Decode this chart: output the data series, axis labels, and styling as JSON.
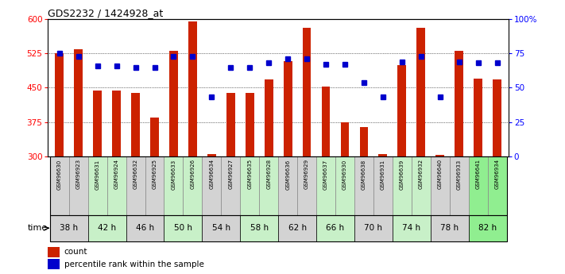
{
  "title": "GDS2232 / 1424928_at",
  "samples": [
    "GSM96630",
    "GSM96923",
    "GSM96631",
    "GSM96924",
    "GSM96632",
    "GSM96925",
    "GSM96633",
    "GSM96926",
    "GSM96634",
    "GSM96927",
    "GSM96635",
    "GSM96928",
    "GSM96636",
    "GSM96929",
    "GSM96637",
    "GSM96930",
    "GSM96638",
    "GSM96931",
    "GSM96639",
    "GSM96932",
    "GSM96640",
    "GSM96933",
    "GSM96641",
    "GSM96934"
  ],
  "counts": [
    525,
    535,
    443,
    443,
    438,
    385,
    530,
    595,
    305,
    438,
    438,
    468,
    508,
    582,
    452,
    375,
    363,
    305,
    500,
    582,
    302,
    530,
    470,
    468
  ],
  "percentile_ranks": [
    75,
    73,
    66,
    66,
    65,
    65,
    73,
    73,
    43,
    65,
    65,
    68,
    71,
    71,
    67,
    67,
    54,
    43,
    69,
    73,
    43,
    69,
    68,
    68
  ],
  "time_groups": [
    {
      "label": "38 h",
      "color": "#d3d3d3"
    },
    {
      "label": "42 h",
      "color": "#c8f0c8"
    },
    {
      "label": "46 h",
      "color": "#d3d3d3"
    },
    {
      "label": "50 h",
      "color": "#c8f0c8"
    },
    {
      "label": "54 h",
      "color": "#d3d3d3"
    },
    {
      "label": "58 h",
      "color": "#c8f0c8"
    },
    {
      "label": "62 h",
      "color": "#d3d3d3"
    },
    {
      "label": "66 h",
      "color": "#c8f0c8"
    },
    {
      "label": "70 h",
      "color": "#d3d3d3"
    },
    {
      "label": "74 h",
      "color": "#c8f0c8"
    },
    {
      "label": "78 h",
      "color": "#d3d3d3"
    },
    {
      "label": "82 h",
      "color": "#90ee90"
    }
  ],
  "bar_color": "#cc2200",
  "percentile_color": "#0000cc",
  "bar_bottom": 300,
  "ylim_left": [
    300,
    600
  ],
  "ylim_right": [
    0,
    100
  ],
  "yticks_left": [
    300,
    375,
    450,
    525,
    600
  ],
  "yticks_right": [
    0,
    25,
    50,
    75,
    100
  ],
  "sample_bg_colors": [
    "#d3d3d3",
    "#d3d3d3",
    "#c8f0c8",
    "#c8f0c8",
    "#d3d3d3",
    "#d3d3d3",
    "#c8f0c8",
    "#c8f0c8",
    "#d3d3d3",
    "#d3d3d3",
    "#c8f0c8",
    "#c8f0c8",
    "#d3d3d3",
    "#d3d3d3",
    "#c8f0c8",
    "#c8f0c8",
    "#d3d3d3",
    "#d3d3d3",
    "#c8f0c8",
    "#c8f0c8",
    "#d3d3d3",
    "#d3d3d3",
    "#90ee90",
    "#90ee90"
  ],
  "figsize": [
    7.11,
    3.45
  ],
  "dpi": 100
}
